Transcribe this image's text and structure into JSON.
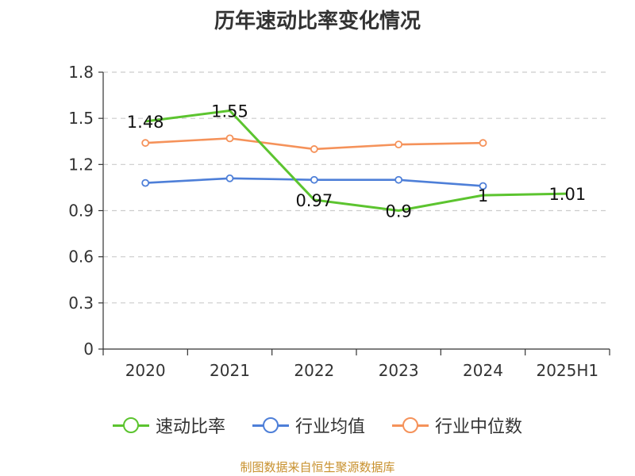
{
  "chart_data": {
    "type": "line",
    "title": "历年速动比率变化情况",
    "categories": [
      "2020",
      "2021",
      "2022",
      "2023",
      "2024",
      "2025H1"
    ],
    "ylim": [
      0,
      1.8
    ],
    "yticks": [
      "0",
      "0.3",
      "0.6",
      "0.9",
      "1.2",
      "1.5",
      "1.8"
    ],
    "grid": true,
    "legend_position": "bottom",
    "series": [
      {
        "name": "速动比率",
        "color": "#5cc42f",
        "values": [
          1.48,
          1.55,
          0.97,
          0.9,
          1,
          1.01
        ],
        "labels": [
          "1.48",
          "1.55",
          "0.97",
          "0.9",
          "1",
          "1.01"
        ]
      },
      {
        "name": "行业均值",
        "color": "#4e7fd8",
        "values": [
          1.08,
          1.11,
          1.1,
          1.1,
          1.06,
          null
        ]
      },
      {
        "name": "行业中位数",
        "color": "#f5925a",
        "values": [
          1.34,
          1.37,
          1.3,
          1.33,
          1.34,
          null
        ]
      }
    ]
  },
  "source_text": "制图数据来自恒生聚源数据库"
}
